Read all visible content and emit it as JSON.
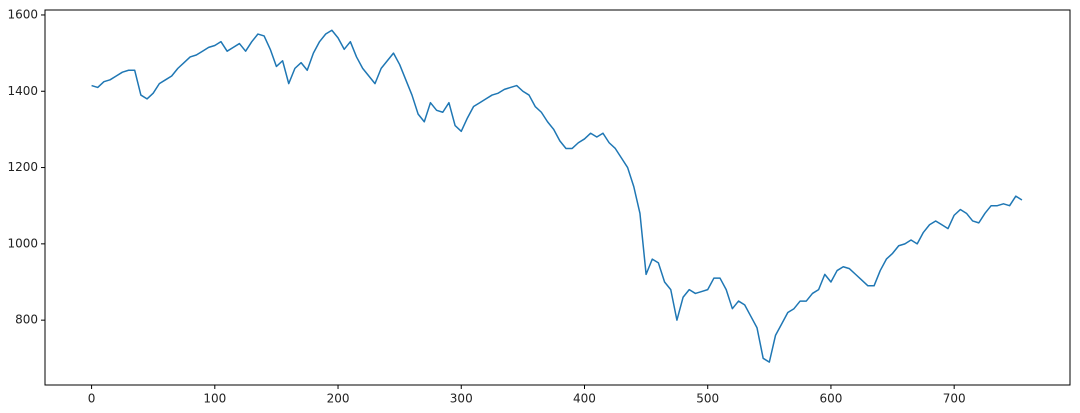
{
  "chart_data": {
    "type": "line",
    "x": [
      0,
      5,
      10,
      15,
      20,
      25,
      30,
      35,
      40,
      45,
      50,
      55,
      60,
      65,
      70,
      75,
      80,
      85,
      90,
      95,
      100,
      105,
      110,
      115,
      120,
      125,
      130,
      135,
      140,
      145,
      150,
      155,
      160,
      165,
      170,
      175,
      180,
      185,
      190,
      195,
      200,
      205,
      210,
      215,
      220,
      225,
      230,
      235,
      240,
      245,
      250,
      255,
      260,
      265,
      270,
      275,
      280,
      285,
      290,
      295,
      300,
      305,
      310,
      315,
      320,
      325,
      330,
      335,
      340,
      345,
      350,
      355,
      360,
      365,
      370,
      375,
      380,
      385,
      390,
      395,
      400,
      405,
      410,
      415,
      420,
      425,
      430,
      435,
      440,
      445,
      450,
      455,
      460,
      465,
      470,
      475,
      480,
      485,
      490,
      495,
      500,
      505,
      510,
      515,
      520,
      525,
      530,
      535,
      540,
      545,
      550,
      555,
      560,
      565,
      570,
      575,
      580,
      585,
      590,
      595,
      600,
      605,
      610,
      615,
      620,
      625,
      630,
      635,
      640,
      645,
      650,
      655,
      660,
      665,
      670,
      675,
      680,
      685,
      690,
      695,
      700,
      705,
      710,
      715,
      720,
      725,
      730,
      735,
      740,
      745,
      750,
      755
    ],
    "values": [
      1415,
      1410,
      1425,
      1430,
      1440,
      1450,
      1455,
      1455,
      1390,
      1380,
      1395,
      1420,
      1430,
      1440,
      1460,
      1475,
      1490,
      1495,
      1505,
      1515,
      1520,
      1530,
      1505,
      1515,
      1525,
      1505,
      1530,
      1550,
      1545,
      1510,
      1465,
      1480,
      1420,
      1460,
      1475,
      1455,
      1500,
      1530,
      1550,
      1560,
      1540,
      1510,
      1530,
      1490,
      1460,
      1440,
      1420,
      1460,
      1480,
      1500,
      1470,
      1430,
      1390,
      1340,
      1320,
      1370,
      1350,
      1345,
      1370,
      1310,
      1295,
      1330,
      1360,
      1370,
      1380,
      1390,
      1395,
      1405,
      1410,
      1415,
      1400,
      1390,
      1360,
      1345,
      1320,
      1300,
      1270,
      1250,
      1250,
      1265,
      1275,
      1290,
      1280,
      1290,
      1265,
      1250,
      1225,
      1200,
      1150,
      1080,
      920,
      960,
      950,
      900,
      880,
      800,
      860,
      880,
      870,
      875,
      880,
      910,
      910,
      880,
      830,
      850,
      840,
      810,
      780,
      700,
      690,
      760,
      790,
      820,
      830,
      850,
      850,
      870,
      880,
      920,
      900,
      930,
      940,
      935,
      920,
      905,
      890,
      890,
      930,
      960,
      975,
      995,
      1000,
      1010,
      1000,
      1030,
      1050,
      1060,
      1050,
      1040,
      1075,
      1090,
      1080,
      1060,
      1055,
      1080,
      1100,
      1100,
      1105,
      1100,
      1125,
      1115
    ],
    "color": "#1f77b4",
    "xlim": [
      -37.8,
      794
    ],
    "ylim": [
      630,
      1613
    ],
    "xticks": [
      0,
      100,
      200,
      300,
      400,
      500,
      600,
      700
    ],
    "yticks": [
      800,
      1000,
      1200,
      1400,
      1600
    ],
    "grid": false
  }
}
